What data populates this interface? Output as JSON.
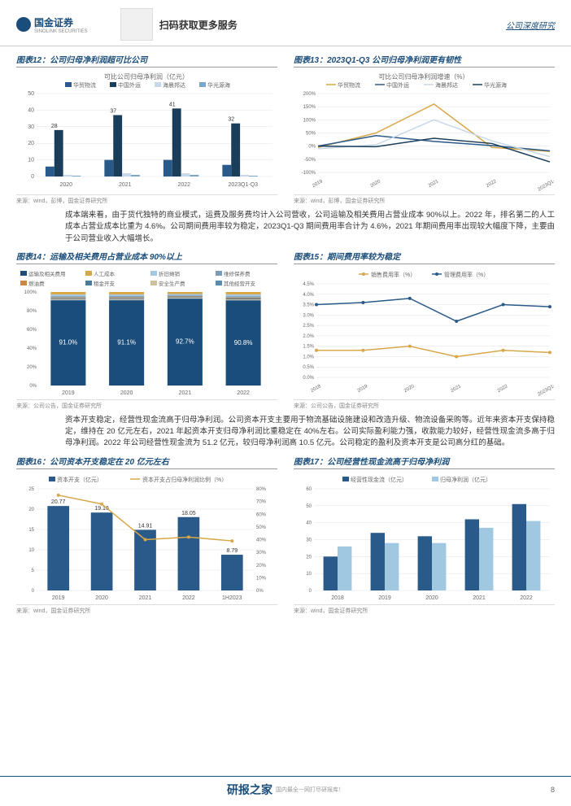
{
  "header": {
    "brand": "国金证券",
    "brand_en": "SINOLINK SECURITIES",
    "scan": "扫码获取更多服务",
    "doc_type": "公司深度研究"
  },
  "chart12": {
    "title": "图表12：公司归母净利润超可比公司",
    "subtitle": "可比公司归母净利润（亿元）",
    "legend": [
      "华贸物流",
      "中国外运",
      "海晨邦达",
      "华光源海"
    ],
    "colors": [
      "#2a5a8a",
      "#1a3d5a",
      "#c8d8e8",
      "#7aa8c8"
    ],
    "source": "来源：wind，彭博，国金证券研究所",
    "categories": [
      "2020",
      "2021",
      "2022",
      "2023Q1-Q3"
    ],
    "label_values": [
      28,
      37,
      41,
      32
    ],
    "ylim": [
      0,
      50
    ],
    "yticks": [
      0,
      10,
      20,
      30,
      40,
      50
    ],
    "series": [
      [
        6,
        10,
        10,
        7
      ],
      [
        28,
        37,
        41,
        32
      ],
      [
        1,
        2,
        2,
        1
      ],
      [
        0.5,
        1,
        1,
        0.5
      ]
    ]
  },
  "chart13": {
    "title": "图表13：2023Q1-Q3 公司归母净利润更有韧性",
    "subtitle": "可比公司归母净利润增速（%）",
    "legend": [
      "华贸物流",
      "中国外运",
      "海晨邦达",
      "华光源海"
    ],
    "colors": [
      "#d8a848",
      "#2a5a8a",
      "#c8d8e8",
      "#1a3d5a"
    ],
    "source": "来源：wind，彭博，国金证券研究所",
    "categories": [
      "2019",
      "2020",
      "2021",
      "2022",
      "2023Q1-Q3"
    ],
    "ylim": [
      -100,
      200
    ],
    "yticks": [
      -100,
      -50,
      0,
      50,
      100,
      150,
      200
    ],
    "series": [
      [
        -5,
        50,
        160,
        -5,
        -20
      ],
      [
        0,
        40,
        18,
        2,
        -18
      ],
      [
        -10,
        5,
        100,
        20,
        -40
      ],
      [
        0,
        -2,
        30,
        10,
        -60
      ]
    ]
  },
  "para1": "成本端来看，由于货代独特的商业模式，运费及服务费均计入公司营收，公司运输及相关费用占营业成本 90%以上。2022 年，排名第二的人工成本占营业成本比重为 4.6%。公司期间费用率较为稳定，2023Q1-Q3 期间费用率合计为 4.6%，2021 年期间费用率出现较大幅度下降，主要由于公司营业收入大幅增长。",
  "chart14": {
    "title": "图表14：运输及相关费用占营业成本 90%以上",
    "legend": [
      "运输及相关费用",
      "人工成本",
      "折旧摊销",
      "维修保养费",
      "燃油费",
      "租金开支",
      "安全生产费",
      "其他经营开支"
    ],
    "colors": [
      "#1a4d7a",
      "#d8a848",
      "#a0c8e0",
      "#7a9ab8",
      "#c88848",
      "#4a7a9a",
      "#d0c0a0",
      "#5a8ab0"
    ],
    "source": "来源：公司公告，国金证券研究所",
    "categories": [
      "2019",
      "2020",
      "2021",
      "2022"
    ],
    "labels": [
      "91.0%",
      "91.1%",
      "92.7%",
      "90.8%"
    ],
    "values": [
      91.0,
      91.1,
      92.7,
      90.8
    ],
    "ylim": [
      0,
      100
    ],
    "yticks": [
      0,
      20,
      40,
      60,
      80,
      100
    ]
  },
  "chart15": {
    "title": "图表15：期间费用率较为稳定",
    "legend": [
      "销售费用率（%）",
      "管理费用率（%）"
    ],
    "colors": [
      "#d8a848",
      "#2a5a8a"
    ],
    "source": "来源：公司公告，国金证券研究所",
    "categories": [
      "2018",
      "2019",
      "2020",
      "2021",
      "2022",
      "2023Q1-Q3"
    ],
    "ylim": [
      0,
      4.5
    ],
    "yticks": [
      0,
      0.5,
      1.0,
      1.5,
      2.0,
      2.5,
      3.0,
      3.5,
      4.0,
      4.5
    ],
    "series": [
      [
        1.3,
        1.3,
        1.5,
        1.0,
        1.3,
        1.2
      ],
      [
        3.5,
        3.6,
        3.8,
        2.7,
        3.5,
        3.4
      ]
    ]
  },
  "para2": "资本开支稳定，经营性现金流高于归母净利润。公司资本开支主要用于物流基础设施建设和改造升级、物流设备采购等。近年来资本开支保持稳定，维持在 20 亿元左右，2021 年起资本开支归母净利润比重稳定在 40%左右。公司实际盈利能力强，收款能力较好，经营性现金流多高于归母净利润。2022 年公司经营性现金流为 51.2 亿元，较归母净利润高 10.5 亿元。公司稳定的盈利及资本开支是公司高分红的基础。",
  "chart16": {
    "title": "图表16：公司资本开支稳定在 20 亿元左右",
    "legend": [
      "资本开支（亿元）",
      "资本开支占归母净利润比例（%）"
    ],
    "colors": [
      "#2a5a8a",
      "#d8a848"
    ],
    "source": "来源：wind，国金证券研究所",
    "categories": [
      "2019",
      "2020",
      "2021",
      "2022",
      "1H2023"
    ],
    "bar_values": [
      20.77,
      19.16,
      14.91,
      18.05,
      8.79
    ],
    "bar_labels": [
      "20.77",
      "19.16",
      "14.91",
      "18.05",
      "8.79"
    ],
    "line_values": [
      75,
      68,
      40,
      42,
      39
    ],
    "ylim_left": [
      0,
      25
    ],
    "yticks_left": [
      0,
      5,
      10,
      15,
      20,
      25
    ],
    "ylim_right": [
      0,
      80
    ],
    "yticks_right": [
      0,
      10,
      20,
      30,
      40,
      50,
      60,
      70,
      80
    ]
  },
  "chart17": {
    "title": "图表17：公司经营性现金流高于归母净利润",
    "legend": [
      "经营性现金流（亿元）",
      "归母净利润（亿元）"
    ],
    "colors": [
      "#2a5a8a",
      "#a0c8e0"
    ],
    "source": "来源：wind，国金证券研究所",
    "categories": [
      "2018",
      "2019",
      "2020",
      "2021",
      "2022"
    ],
    "ylim": [
      0,
      60
    ],
    "yticks": [
      0,
      10,
      20,
      30,
      40,
      50,
      60
    ],
    "series": [
      [
        20,
        34,
        32,
        42,
        51
      ],
      [
        26,
        28,
        28,
        37,
        41
      ]
    ]
  },
  "footer": {
    "logo": "研报之家",
    "sub": "国内最全一网打尽研报库！",
    "page": "8"
  }
}
